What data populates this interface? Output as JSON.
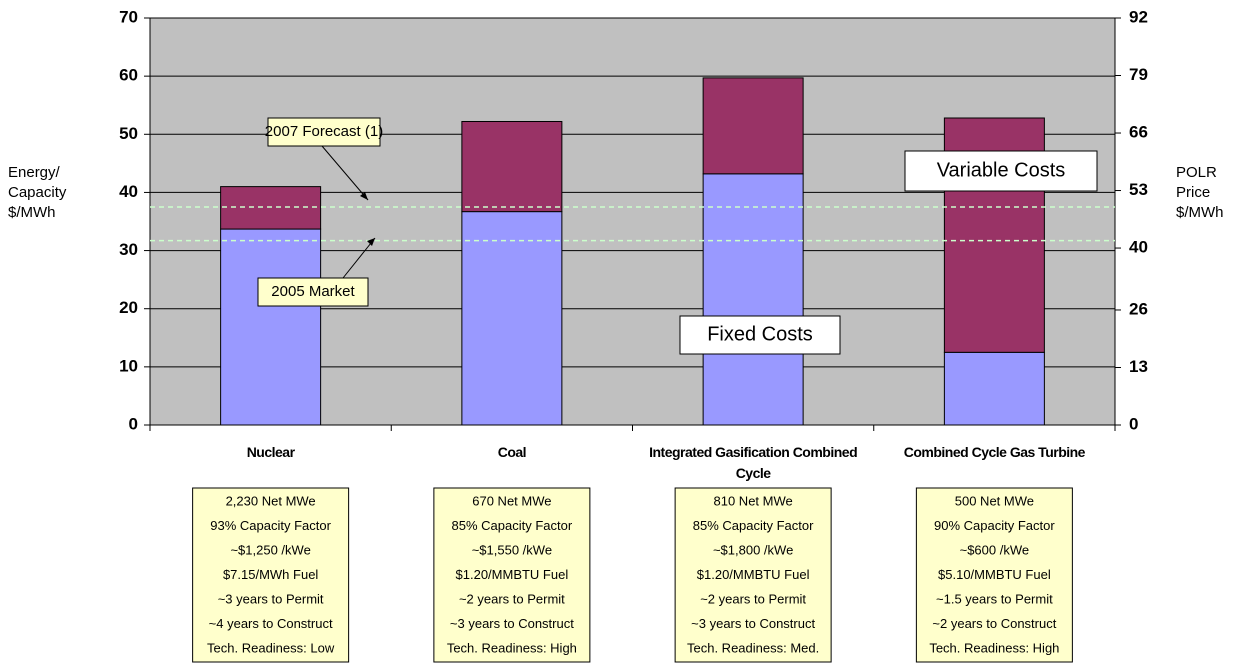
{
  "chart_data": {
    "type": "stacked_bar",
    "ylabel": "Energy/ Capacity $/MWh",
    "y2label": "POLR Price $/MWh",
    "categories": [
      "Nuclear",
      "Coal",
      "Integrated Gasification Combined Cycle",
      "Combined Cycle Gas Turbine"
    ],
    "series": [
      {
        "name": "Fixed Costs",
        "color": "#9999ff",
        "values": [
          33.7,
          36.7,
          43.2,
          12.5
        ]
      },
      {
        "name": "Variable Costs",
        "color": "#993366",
        "values": [
          7.3,
          15.5,
          16.5,
          40.3
        ]
      }
    ],
    "ylim": [
      0,
      70
    ],
    "yticks": [
      0,
      10,
      20,
      30,
      40,
      50,
      60,
      70
    ],
    "y2lim": [
      0,
      92
    ],
    "y2ticks": [
      0,
      13,
      26,
      40,
      53,
      66,
      79,
      92
    ],
    "grid": true,
    "reference_lines": [
      {
        "value": 37.5,
        "label": "2007 Forecast (1)"
      },
      {
        "value": 31.7,
        "label": "2005 Market"
      }
    ],
    "notes": [
      [
        "2,230 Net MWe",
        "93% Capacity Factor",
        "~$1,250 /kWe",
        "$7.15/MWh Fuel",
        "~3 years to Permit",
        "~4 years to Construct",
        "Tech. Readiness: Low"
      ],
      [
        "670 Net MWe",
        "85% Capacity Factor",
        "~$1,550 /kWe",
        "$1.20/MMBTU Fuel",
        "~2 years to Permit",
        "~3 years to Construct",
        "Tech. Readiness: High"
      ],
      [
        "810 Net MWe",
        "85% Capacity Factor",
        "~$1,800 /kWe",
        "$1.20/MMBTU Fuel",
        "~2 years to Permit",
        "~3 years to Construct",
        "Tech. Readiness: Med."
      ],
      [
        "500 Net MWe",
        "90% Capacity Factor",
        "~$600 /kWe",
        "$5.10/MMBTU Fuel",
        "~1.5 years to Permit",
        "~2 years to Construct",
        "Tech. Readiness: High"
      ]
    ]
  }
}
